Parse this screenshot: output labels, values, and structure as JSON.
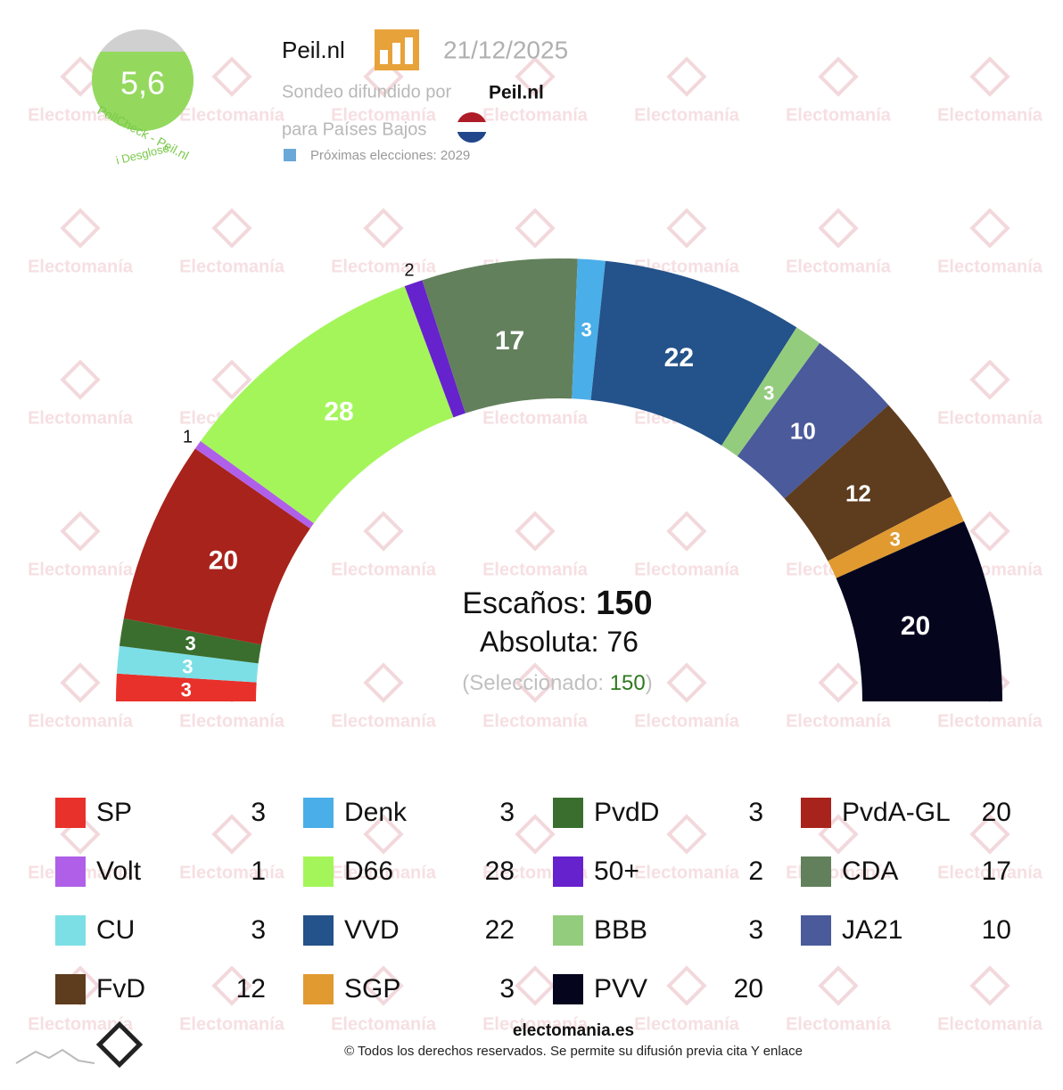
{
  "chart_data": {
    "type": "parliament",
    "categories": [
      "SP",
      "CU",
      "PvdD",
      "PvdA-GL",
      "Volt",
      "D66",
      "50+",
      "CDA",
      "Denk",
      "VVD",
      "BBB",
      "JA21",
      "FvD",
      "SGP",
      "PVV"
    ],
    "values": [
      3,
      3,
      3,
      20,
      1,
      28,
      2,
      17,
      3,
      22,
      3,
      10,
      12,
      3,
      20
    ],
    "colors": [
      "#e8312a",
      "#7ddfe6",
      "#3a6e2e",
      "#a8231b",
      "#b060e8",
      "#a4f55a",
      "#6622cc",
      "#62805c",
      "#4aaee8",
      "#24528a",
      "#94cc7e",
      "#4a5a9a",
      "#5e3c1e",
      "#e09a30",
      "#05051e"
    ],
    "seats_label": "Escaños:",
    "seats": 150,
    "majority_label": "Absoluta:",
    "majority": 76,
    "selected_label": "(Seleccionado:",
    "selected": 150,
    "selected_close": ")"
  },
  "header": {
    "pollster": "Peil.nl",
    "date": "21/12/2025",
    "spread_by": "Sondeo difundido por",
    "spread_by_name": "Peil.nl",
    "country": "para Países Bajos",
    "next_elections": "Próximas elecciones: 2029",
    "score": "5,6",
    "score_source": "PollCheck - Peil.nl",
    "breakdown": "i Desglose"
  },
  "footer": {
    "site": "electomania.es",
    "copyright": "© Todos los derechos reservados. Se permite su difusión previa cita Y enlace"
  },
  "watermark": "Electomanía"
}
